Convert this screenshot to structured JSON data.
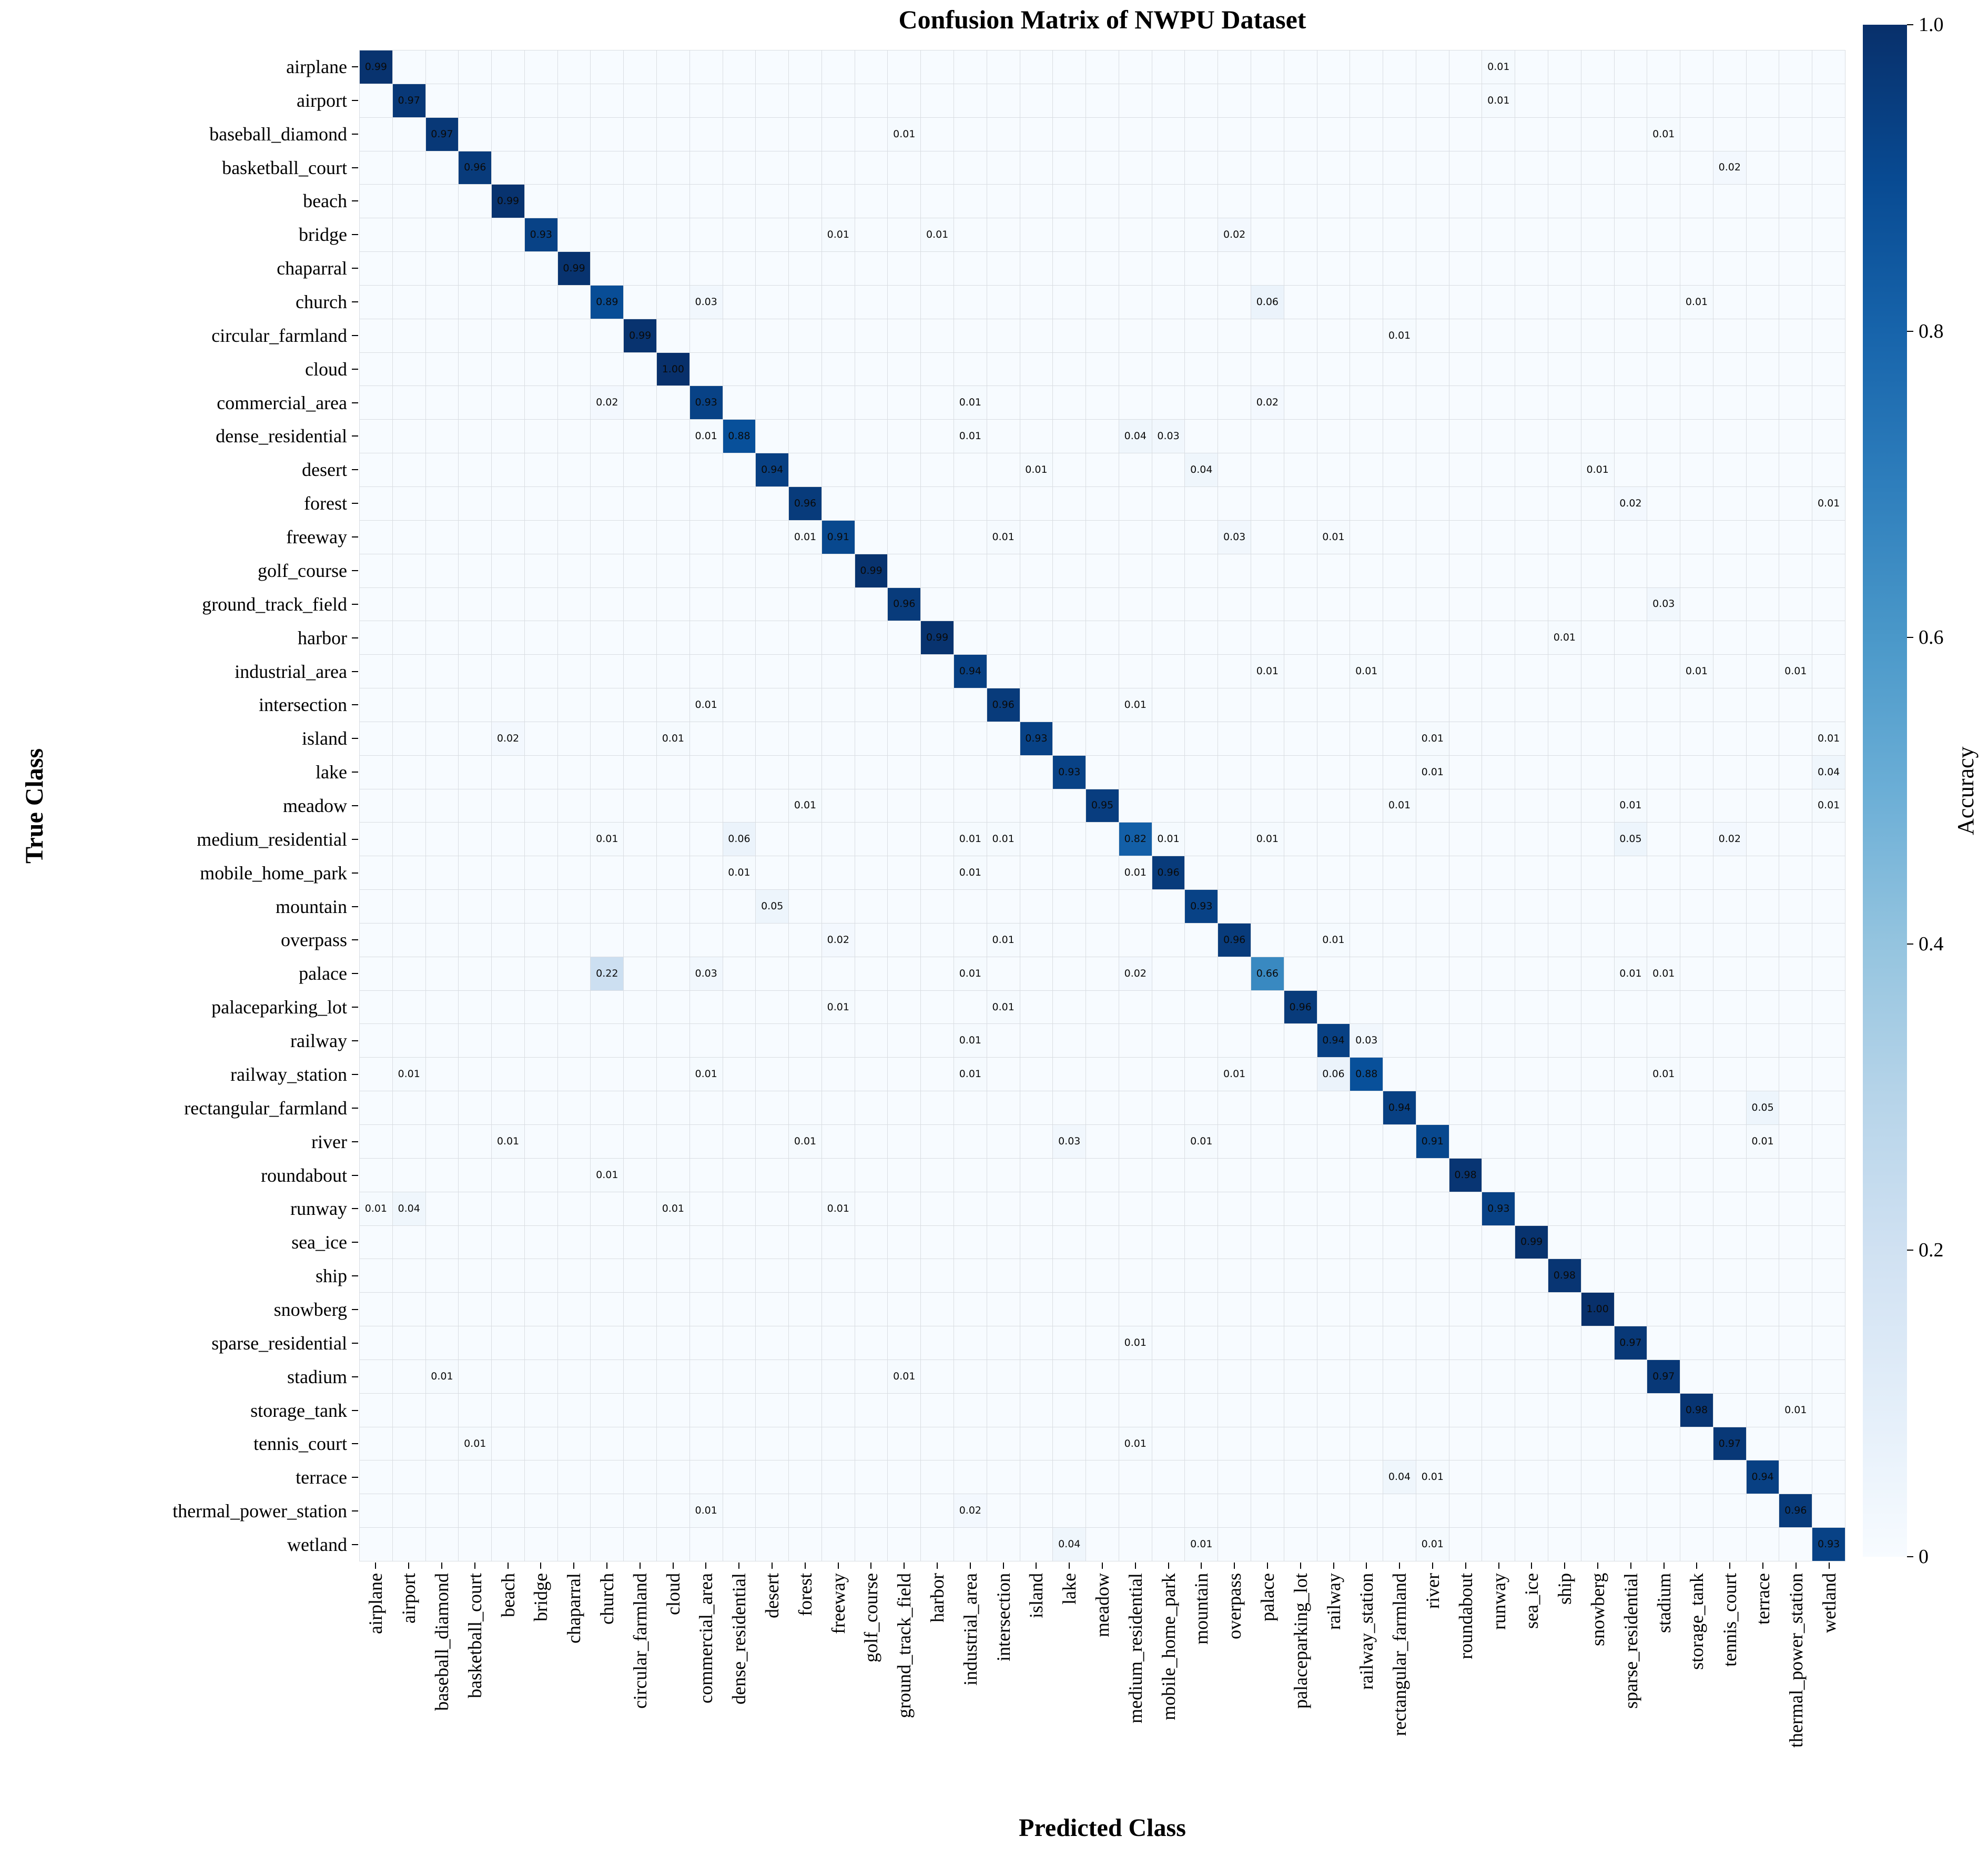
{
  "title": "Confusion Matrix of NWPU Dataset",
  "axis_titles": {
    "x": "Predicted Class",
    "y": "True Class"
  },
  "chart_data": {
    "type": "heatmap",
    "title": "Confusion Matrix of NWPU Dataset",
    "xlabel": "Predicted Class",
    "ylabel": "True Class",
    "value_range": [
      0,
      1
    ],
    "grid": true,
    "categories": [
      "airplane",
      "airport",
      "baseball_diamond",
      "basketball_court",
      "beach",
      "bridge",
      "chaparral",
      "church",
      "circular_farmland",
      "cloud",
      "commercial_area",
      "dense_residential",
      "desert",
      "forest",
      "freeway",
      "golf_course",
      "ground_track_field",
      "harbor",
      "industrial_area",
      "intersection",
      "island",
      "lake",
      "meadow",
      "medium_residential",
      "mobile_home_park",
      "mountain",
      "overpass",
      "palace",
      "palaceparking_lot",
      "railway",
      "railway_station",
      "rectangular_farmland",
      "river",
      "roundabout",
      "runway",
      "sea_ice",
      "ship",
      "snowberg",
      "sparse_residential",
      "stadium",
      "storage_tank",
      "tennis_court",
      "terrace",
      "thermal_power_station",
      "wetland"
    ],
    "diagonal": [
      0.99,
      0.97,
      0.97,
      0.96,
      0.99,
      0.93,
      0.99,
      0.89,
      0.99,
      1.0,
      0.93,
      0.88,
      0.94,
      0.96,
      0.91,
      0.99,
      0.96,
      0.99,
      0.94,
      0.96,
      0.93,
      0.93,
      0.95,
      0.82,
      0.96,
      0.93,
      0.96,
      0.66,
      0.96,
      0.94,
      0.88,
      0.94,
      0.91,
      0.98,
      0.93,
      0.99,
      0.98,
      1.0,
      0.97,
      0.97,
      0.98,
      0.97,
      0.94,
      0.96,
      0.93
    ],
    "off_diagonal": [
      [
        0,
        34,
        0.01
      ],
      [
        1,
        34,
        0.01
      ],
      [
        2,
        16,
        0.01
      ],
      [
        2,
        39,
        0.01
      ],
      [
        3,
        41,
        0.02
      ],
      [
        5,
        14,
        0.01
      ],
      [
        5,
        17,
        0.01
      ],
      [
        5,
        26,
        0.02
      ],
      [
        7,
        10,
        0.03
      ],
      [
        7,
        27,
        0.06
      ],
      [
        7,
        40,
        0.01
      ],
      [
        8,
        31,
        0.01
      ],
      [
        10,
        7,
        0.02
      ],
      [
        10,
        18,
        0.01
      ],
      [
        10,
        27,
        0.02
      ],
      [
        11,
        10,
        0.01
      ],
      [
        11,
        18,
        0.01
      ],
      [
        11,
        23,
        0.04
      ],
      [
        11,
        24,
        0.03
      ],
      [
        12,
        20,
        0.01
      ],
      [
        12,
        25,
        0.04
      ],
      [
        12,
        37,
        0.01
      ],
      [
        13,
        38,
        0.02
      ],
      [
        13,
        44,
        0.01
      ],
      [
        14,
        13,
        0.01
      ],
      [
        14,
        19,
        0.01
      ],
      [
        14,
        26,
        0.03
      ],
      [
        14,
        29,
        0.01
      ],
      [
        16,
        39,
        0.03
      ],
      [
        17,
        36,
        0.01
      ],
      [
        18,
        27,
        0.01
      ],
      [
        18,
        30,
        0.01
      ],
      [
        18,
        40,
        0.01
      ],
      [
        18,
        43,
        0.01
      ],
      [
        19,
        10,
        0.01
      ],
      [
        19,
        23,
        0.01
      ],
      [
        20,
        4,
        0.02
      ],
      [
        20,
        9,
        0.01
      ],
      [
        20,
        32,
        0.01
      ],
      [
        20,
        44,
        0.01
      ],
      [
        21,
        32,
        0.01
      ],
      [
        21,
        44,
        0.04
      ],
      [
        22,
        13,
        0.01
      ],
      [
        22,
        31,
        0.01
      ],
      [
        22,
        38,
        0.01
      ],
      [
        22,
        44,
        0.01
      ],
      [
        23,
        7,
        0.01
      ],
      [
        23,
        11,
        0.06
      ],
      [
        23,
        18,
        0.01
      ],
      [
        23,
        19,
        0.01
      ],
      [
        23,
        24,
        0.01
      ],
      [
        23,
        27,
        0.01
      ],
      [
        23,
        38,
        0.05
      ],
      [
        23,
        41,
        0.02
      ],
      [
        24,
        11,
        0.01
      ],
      [
        24,
        18,
        0.01
      ],
      [
        24,
        23,
        0.01
      ],
      [
        25,
        12,
        0.05
      ],
      [
        26,
        14,
        0.02
      ],
      [
        26,
        19,
        0.01
      ],
      [
        26,
        29,
        0.01
      ],
      [
        27,
        7,
        0.22
      ],
      [
        27,
        10,
        0.03
      ],
      [
        27,
        18,
        0.01
      ],
      [
        27,
        23,
        0.02
      ],
      [
        27,
        38,
        0.01
      ],
      [
        27,
        39,
        0.01
      ],
      [
        28,
        14,
        0.01
      ],
      [
        28,
        19,
        0.01
      ],
      [
        29,
        18,
        0.01
      ],
      [
        29,
        30,
        0.03
      ],
      [
        30,
        1,
        0.01
      ],
      [
        30,
        10,
        0.01
      ],
      [
        30,
        18,
        0.01
      ],
      [
        30,
        26,
        0.01
      ],
      [
        30,
        29,
        0.06
      ],
      [
        30,
        39,
        0.01
      ],
      [
        31,
        42,
        0.05
      ],
      [
        32,
        4,
        0.01
      ],
      [
        32,
        13,
        0.01
      ],
      [
        32,
        21,
        0.03
      ],
      [
        32,
        25,
        0.01
      ],
      [
        32,
        42,
        0.01
      ],
      [
        33,
        7,
        0.01
      ],
      [
        34,
        0,
        0.01
      ],
      [
        34,
        1,
        0.04
      ],
      [
        34,
        9,
        0.01
      ],
      [
        34,
        14,
        0.01
      ],
      [
        38,
        23,
        0.01
      ],
      [
        39,
        2,
        0.01
      ],
      [
        39,
        16,
        0.01
      ],
      [
        40,
        43,
        0.01
      ],
      [
        41,
        3,
        0.01
      ],
      [
        41,
        23,
        0.01
      ],
      [
        42,
        31,
        0.04
      ],
      [
        42,
        32,
        0.01
      ],
      [
        43,
        10,
        0.01
      ],
      [
        43,
        18,
        0.02
      ],
      [
        44,
        21,
        0.04
      ],
      [
        44,
        25,
        0.01
      ],
      [
        44,
        32,
        0.01
      ]
    ],
    "legend_position": "right",
    "colorbar": {
      "label": "Accuracy",
      "ticks": [
        "1.0",
        "0.8",
        "0.6",
        "0.4",
        "0.2",
        "0"
      ],
      "tick_values": [
        1.0,
        0.8,
        0.6,
        0.4,
        0.2,
        0.0
      ],
      "colormap_name": "Blues",
      "colormap_stops": [
        "#f7fbff",
        "#deebf7",
        "#c6dbef",
        "#9ecae1",
        "#6baed6",
        "#4292c6",
        "#2171b5",
        "#08519c",
        "#08306b"
      ]
    }
  }
}
